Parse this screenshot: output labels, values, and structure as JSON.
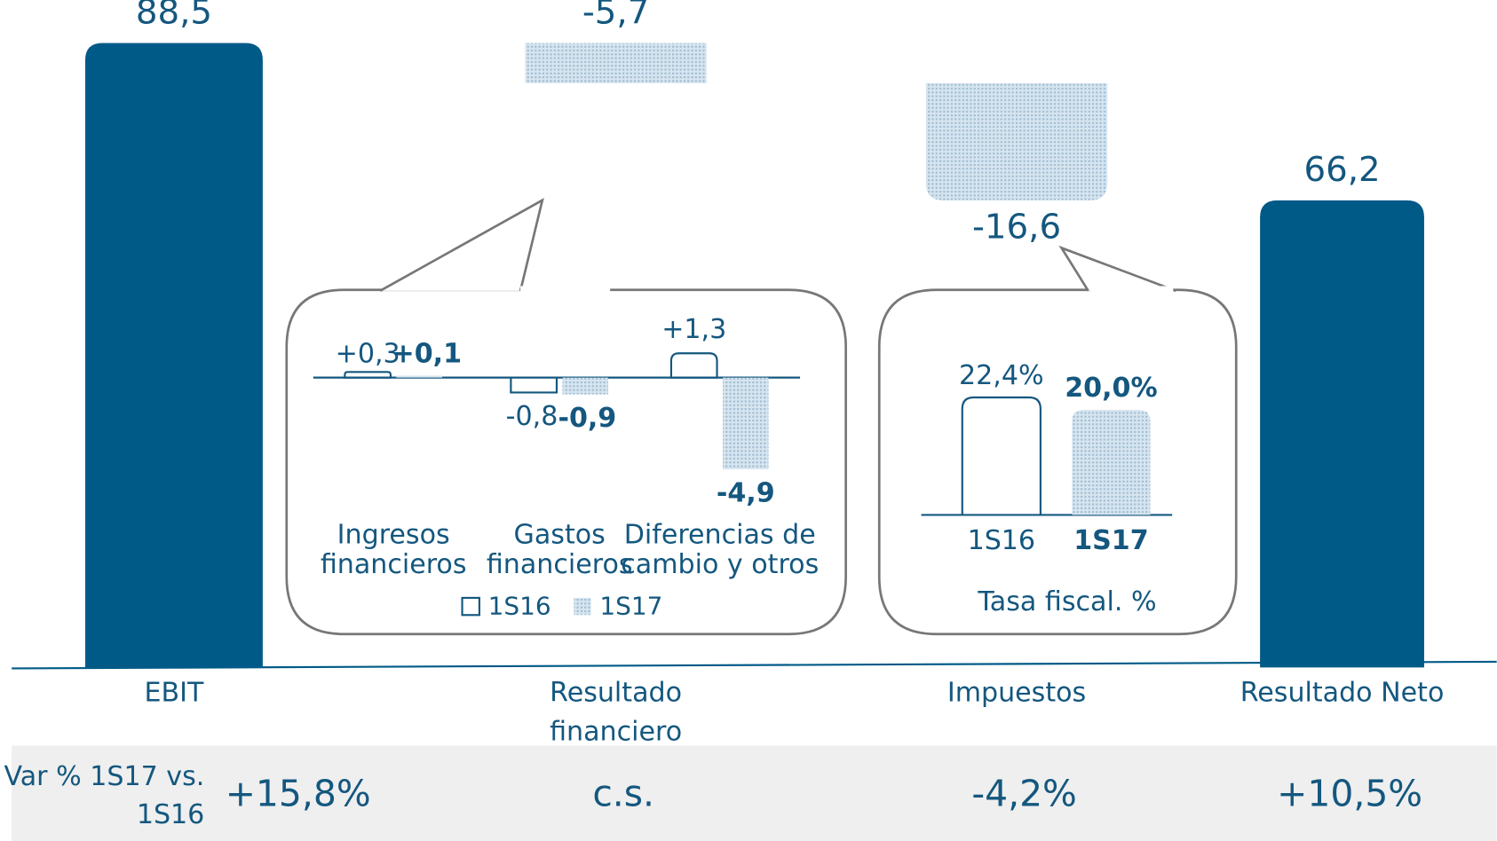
{
  "chart_data": [
    {
      "type": "waterfall",
      "categories": [
        "EBIT",
        "Resultado financiero",
        "Impuestos",
        "Resultado Neto"
      ],
      "values": [
        88.5,
        -5.7,
        -16.6,
        66.2
      ],
      "value_labels": [
        "88,5",
        "-5,7",
        "-16,6",
        "66,2"
      ],
      "color": "#005a87"
    },
    {
      "type": "bar",
      "categories": [
        "Ingresos financieros",
        "Gastos financieros",
        "Diferencias de cambio y otros"
      ],
      "series": [
        {
          "name": "1S16",
          "values": [
            0.3,
            -0.8,
            1.3
          ],
          "value_labels": [
            "+0,3",
            "-0,8",
            "+1,3"
          ]
        },
        {
          "name": "1S17",
          "values": [
            0.1,
            -0.9,
            -4.9
          ],
          "value_labels": [
            "+0,1",
            "-0,9",
            "-4,9"
          ]
        }
      ]
    },
    {
      "type": "bar",
      "categories": [
        "1S16",
        "1S17"
      ],
      "values": [
        22.4,
        20.0
      ],
      "value_labels": [
        "22,4%",
        "20,0%"
      ],
      "xlabel": "Tasa fiscal. %"
    }
  ],
  "variation": {
    "label": "Var % 1S17 vs. 1S16",
    "values": [
      "+15,8%",
      "c.s.",
      "-4,2%",
      "+10,5%"
    ]
  }
}
